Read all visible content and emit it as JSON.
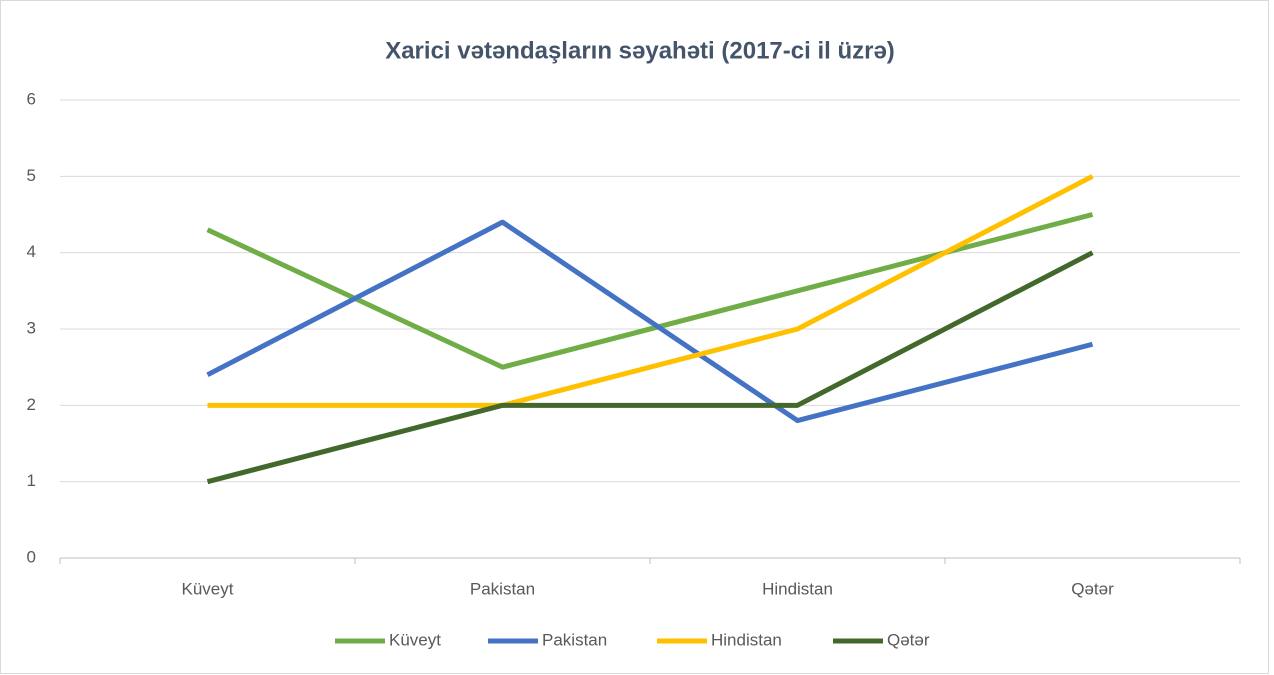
{
  "chart_data": {
    "type": "line",
    "title": "Xarici vətəndaşların səyahəti (2017-ci il üzrə)",
    "categories": [
      "Küveyt",
      "Pakistan",
      "Hindistan",
      "Qətər"
    ],
    "series": [
      {
        "name": "Küveyt",
        "color": "#70ad47",
        "values": [
          4.3,
          2.5,
          3.5,
          4.5
        ]
      },
      {
        "name": "Pakistan",
        "color": "#4472c4",
        "values": [
          2.4,
          4.4,
          1.8,
          2.8
        ]
      },
      {
        "name": "Hindistan",
        "color": "#ffc000",
        "values": [
          2,
          2,
          3,
          5
        ]
      },
      {
        "name": "Qətər",
        "color": "#43682b",
        "values": [
          1,
          2,
          2,
          4
        ]
      }
    ],
    "ylim": [
      0,
      6
    ],
    "yticks": [
      0,
      1,
      2,
      3,
      4,
      5,
      6
    ],
    "grid": true,
    "legend": "bottom"
  }
}
